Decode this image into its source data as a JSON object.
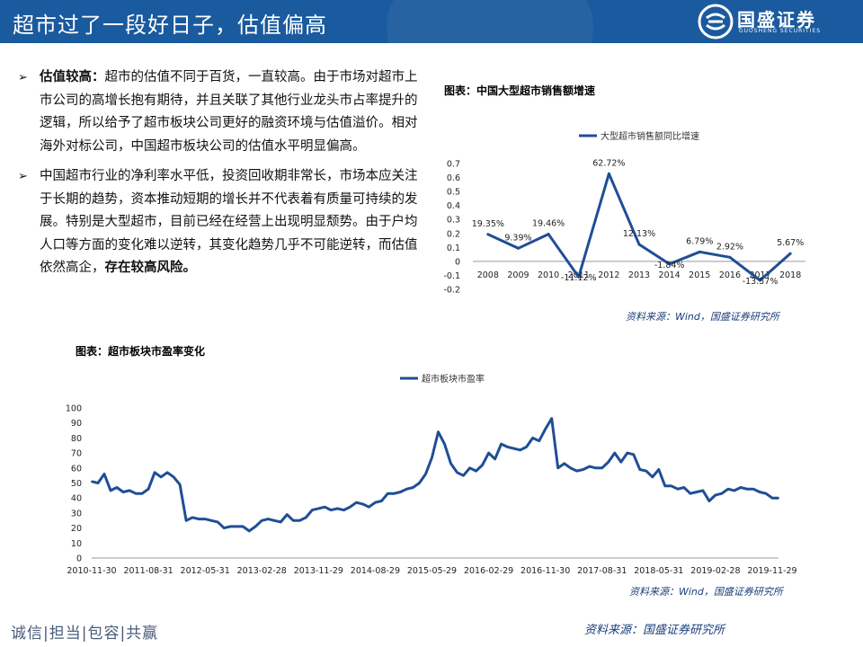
{
  "header": {
    "title": "超市过了一段好日子，估值偏高",
    "logo_cn": "国盛证券",
    "logo_en": "GUOSHENG SECURITIES"
  },
  "bullets": [
    {
      "lead": "估值较高：",
      "text": "超市的估值不同于百货，一直较高。由于市场对超市上市公司的高增长抱有期待，并且关联了其他行业龙头市占率提升的逻辑，所以给予了超市板块公司更好的融资环境与估值溢价。相对海外对标公司，中国超市板块公司的估值水平明显偏高。"
    },
    {
      "text": "中国超市行业的净利率水平低，投资回收期非常长，市场本应关注于长期的趋势，资本推动短期的增长并不代表着有质量可持续的发展。特别是大型超市，目前已经在经营上出现明显颓势。由于户均人口等方面的变化难以逆转，其变化趋势几乎不可能逆转，而估值依然高企，",
      "tail": "存在较高风险。"
    }
  ],
  "chart1": {
    "caption": "图表：中国大型超市销售额增速",
    "source": "资料来源：Wind，国盛证券研究所"
  },
  "chart2": {
    "caption": "图表：超市板块市盈率变化",
    "source": "资料来源：Wind，国盛证券研究所"
  },
  "footer": {
    "motto": "诚信|担当|包容|共赢",
    "source": "资料来源：国盛证券研究所"
  },
  "colors": {
    "brand": "#1a5a9e",
    "series": "#1f4e96"
  },
  "chart_data": [
    {
      "type": "line",
      "legend_position": "top",
      "grid": false,
      "x": [
        "2008",
        "2009",
        "2010",
        "2011",
        "2012",
        "2013",
        "2014",
        "2015",
        "2016",
        "2017",
        "2018"
      ],
      "series": [
        {
          "name": "大型超市销售额同比增速",
          "values": [
            0.1935,
            0.0939,
            0.1946,
            -0.1112,
            0.6272,
            0.1213,
            -0.0184,
            0.0679,
            0.0292,
            -0.1357,
            0.0567
          ],
          "labels": [
            "19.35%",
            "9.39%",
            "19.46%",
            "-11.12%",
            "62.72%",
            "12.13%",
            "-1.84%",
            "6.79%",
            "2.92%",
            "-13.57%",
            "5.67%"
          ]
        }
      ],
      "yticks": [
        "0.7",
        "0.6",
        "0.5",
        "0.4",
        "0.3",
        "0.2",
        "0.1",
        "0",
        "-0.1",
        "-0.2"
      ],
      "ylim": [
        -0.2,
        0.7
      ]
    },
    {
      "type": "line",
      "legend_position": "top",
      "grid": false,
      "x": [
        "2010-11-30",
        "2010-12-31",
        "2011-01-31",
        "2011-02-28",
        "2011-03-31",
        "2011-04-29",
        "2011-05-31",
        "2011-06-30",
        "2011-07-29",
        "2011-08-31",
        "2011-09-30",
        "2011-10-31",
        "2011-11-30",
        "2011-12-30",
        "2012-01-31",
        "2012-02-29",
        "2012-03-30",
        "2012-04-27",
        "2012-05-31",
        "2012-06-29",
        "2012-07-31",
        "2012-08-31",
        "2012-09-28",
        "2012-10-31",
        "2012-11-30",
        "2012-12-31",
        "2013-01-31",
        "2013-02-28",
        "2013-03-29",
        "2013-04-26",
        "2013-05-31",
        "2013-06-28",
        "2013-07-31",
        "2013-08-30",
        "2013-09-30",
        "2013-10-31",
        "2013-11-29",
        "2013-12-31",
        "2014-01-30",
        "2014-02-28",
        "2014-03-31",
        "2014-04-30",
        "2014-05-30",
        "2014-06-30",
        "2014-07-31",
        "2014-08-29",
        "2014-09-30",
        "2014-10-31",
        "2014-11-28",
        "2014-12-31",
        "2015-01-30",
        "2015-02-27",
        "2015-03-31",
        "2015-04-30",
        "2015-05-29",
        "2015-06-30",
        "2015-07-31",
        "2015-08-31",
        "2015-09-30",
        "2015-10-30",
        "2015-11-30",
        "2015-12-31",
        "2016-01-29",
        "2016-02-29",
        "2016-03-31",
        "2016-04-29",
        "2016-05-31",
        "2016-06-30",
        "2016-07-29",
        "2016-08-31",
        "2016-09-30",
        "2016-10-31",
        "2016-11-30",
        "2016-12-30",
        "2017-01-26",
        "2017-02-28",
        "2017-03-31",
        "2017-04-28",
        "2017-05-31",
        "2017-06-30",
        "2017-07-31",
        "2017-08-31",
        "2017-09-29",
        "2017-10-31",
        "2017-11-30",
        "2017-12-29",
        "2018-01-31",
        "2018-02-28",
        "2018-03-30",
        "2018-04-27",
        "2018-05-31",
        "2018-06-29",
        "2018-07-31",
        "2018-08-31",
        "2018-09-28",
        "2018-10-31",
        "2018-11-30",
        "2018-12-28",
        "2019-01-31",
        "2019-02-28",
        "2019-03-29",
        "2019-04-30",
        "2019-05-31",
        "2019-06-28",
        "2019-07-31",
        "2019-08-30",
        "2019-09-30",
        "2019-10-31",
        "2019-11-29",
        "2019-12-31"
      ],
      "series": [
        {
          "name": "超市板块市盈率",
          "values": [
            51,
            50,
            56,
            45,
            47,
            44,
            45,
            43,
            43,
            46,
            57,
            54,
            57,
            54,
            49,
            25,
            27,
            26,
            26,
            25,
            24,
            20,
            21,
            21,
            21,
            18,
            21,
            25,
            26,
            25,
            24,
            29,
            25,
            25,
            27,
            32,
            33,
            34,
            32,
            33,
            32,
            34,
            37,
            36,
            34,
            37,
            38,
            43,
            43,
            44,
            46,
            47,
            50,
            56,
            67,
            84,
            76,
            63,
            57,
            55,
            60,
            58,
            62,
            70,
            66,
            76,
            74,
            73,
            72,
            74,
            80,
            78,
            86,
            93,
            60,
            63,
            60,
            58,
            59,
            61,
            60,
            60,
            64,
            70,
            64,
            70,
            69,
            59,
            58,
            54,
            59,
            48,
            48,
            46,
            47,
            43,
            44,
            45,
            38,
            42,
            43,
            46,
            45,
            47,
            46,
            46,
            44,
            43,
            40,
            40
          ]
        }
      ],
      "xticks": [
        "2010-11-30",
        "2011-08-31",
        "2012-05-31",
        "2013-02-28",
        "2013-11-29",
        "2014-08-29",
        "2015-05-29",
        "2016-02-29",
        "2016-11-30",
        "2017-08-31",
        "2018-05-31",
        "2019-02-28",
        "2019-11-29"
      ],
      "yticks": [
        "100",
        "90",
        "80",
        "70",
        "60",
        "50",
        "40",
        "30",
        "20",
        "10",
        "0"
      ],
      "ylim": [
        0,
        100
      ]
    }
  ]
}
